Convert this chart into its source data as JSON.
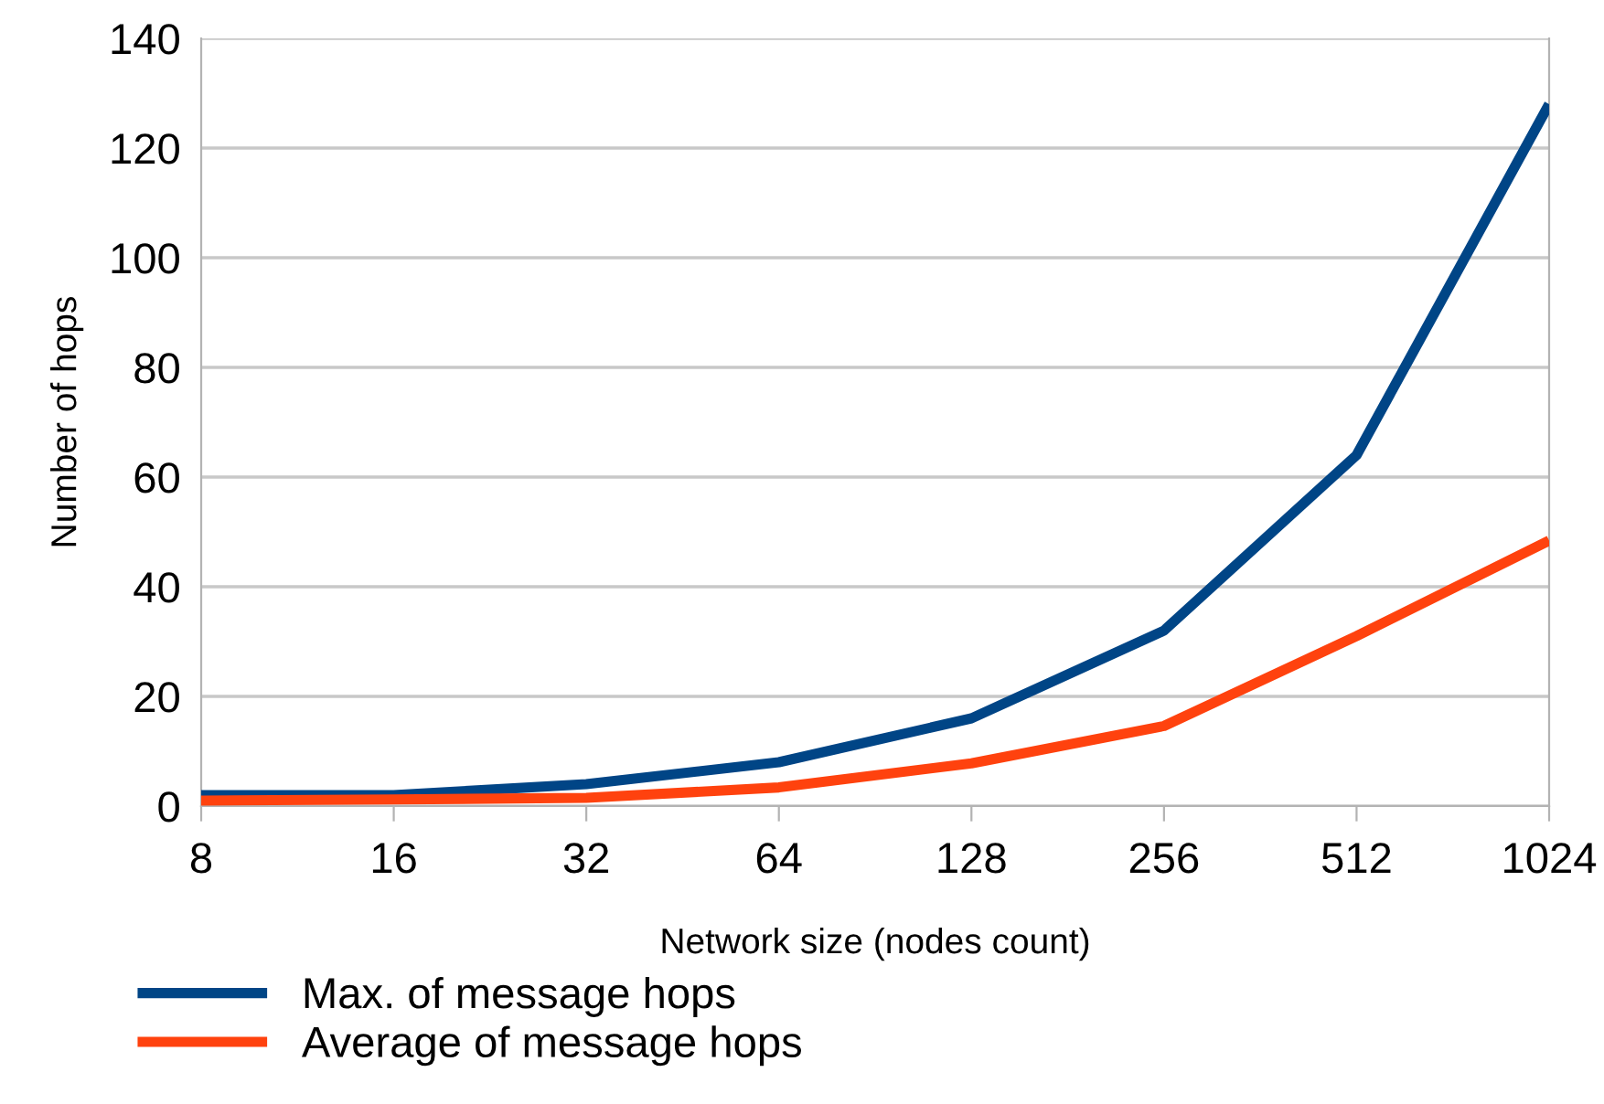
{
  "chart_data": {
    "type": "line",
    "xlabel": "Network size (nodes count)",
    "ylabel": "Number of hops",
    "categories": [
      "8",
      "16",
      "32",
      "64",
      "128",
      "256",
      "512",
      "1024"
    ],
    "series": [
      {
        "name": "Max. of message hops",
        "color": "#004586",
        "values": [
          2,
          2,
          4,
          8,
          16,
          32,
          64,
          128
        ]
      },
      {
        "name": "Average of message hops",
        "color": "#ff420e",
        "values": [
          1,
          1.2,
          1.5,
          3.4,
          7.8,
          14.6,
          31,
          48.4
        ]
      }
    ],
    "ylim": [
      0,
      140
    ],
    "yticks": [
      0,
      20,
      40,
      60,
      80,
      100,
      120,
      140
    ],
    "grid": "y",
    "legend": "bottom",
    "marker": "none",
    "line_style": "solid"
  }
}
